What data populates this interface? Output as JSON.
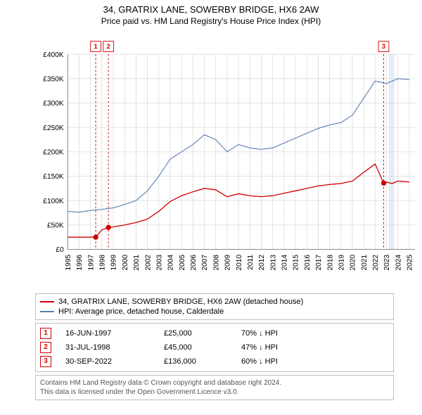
{
  "title": "34, GRATRIX LANE, SOWERBY BRIDGE, HX6 2AW",
  "subtitle": "Price paid vs. HM Land Registry's House Price Index (HPI)",
  "chart": {
    "type": "line",
    "background_color": "#ffffff",
    "grid_color": "#d9d9d9",
    "axis_color": "#808080",
    "yaxis": {
      "min": 0,
      "max": 400000,
      "tick_step": 50000,
      "ticks": [
        "£0",
        "£50K",
        "£100K",
        "£150K",
        "£200K",
        "£250K",
        "£300K",
        "£350K",
        "£400K"
      ],
      "label_fontsize": 11
    },
    "xaxis": {
      "min": 1995,
      "max": 2025.5,
      "years": [
        1995,
        1996,
        1997,
        1998,
        1999,
        2000,
        2001,
        2002,
        2003,
        2004,
        2005,
        2006,
        2007,
        2008,
        2009,
        2010,
        2011,
        2012,
        2013,
        2014,
        2015,
        2016,
        2017,
        2018,
        2019,
        2020,
        2021,
        2022,
        2023,
        2024,
        2025
      ],
      "label_fontsize": 11
    },
    "event_band": {
      "x_start": 2023.2,
      "x_end": 2023.7,
      "fill": "#e6ecf5"
    },
    "series": [
      {
        "name": "property",
        "label": "34, GRATRIX LANE, SOWERBY BRIDGE, HX6 2AW (detached house)",
        "color": "#d00000",
        "line_width": 1.4,
        "data": [
          [
            1995,
            25000
          ],
          [
            1996,
            25000
          ],
          [
            1997,
            25000
          ],
          [
            1997.46,
            25000
          ],
          [
            1998,
            40000
          ],
          [
            1998.58,
            45000
          ],
          [
            1999,
            46000
          ],
          [
            2000,
            50000
          ],
          [
            2001,
            55000
          ],
          [
            2002,
            62000
          ],
          [
            2003,
            78000
          ],
          [
            2004,
            98000
          ],
          [
            2005,
            110000
          ],
          [
            2006,
            118000
          ],
          [
            2007,
            125000
          ],
          [
            2008,
            122000
          ],
          [
            2009,
            108000
          ],
          [
            2010,
            114000
          ],
          [
            2011,
            110000
          ],
          [
            2012,
            108000
          ],
          [
            2013,
            110000
          ],
          [
            2014,
            115000
          ],
          [
            2015,
            120000
          ],
          [
            2016,
            125000
          ],
          [
            2017,
            130000
          ],
          [
            2018,
            133000
          ],
          [
            2019,
            135000
          ],
          [
            2020,
            140000
          ],
          [
            2021,
            158000
          ],
          [
            2022,
            175000
          ],
          [
            2022.75,
            136000
          ],
          [
            2023,
            138000
          ],
          [
            2023.5,
            135000
          ],
          [
            2024,
            140000
          ],
          [
            2025,
            138000
          ]
        ],
        "markers": [
          {
            "x": 1997.46,
            "y": 25000
          },
          {
            "x": 1998.58,
            "y": 45000
          },
          {
            "x": 2022.75,
            "y": 136000
          }
        ]
      },
      {
        "name": "hpi",
        "label": "HPI: Average price, detached house, Calderdale",
        "color": "#5b7fb3",
        "line_width": 1.2,
        "data": [
          [
            1995,
            78000
          ],
          [
            1996,
            76000
          ],
          [
            1997,
            80000
          ],
          [
            1998,
            82000
          ],
          [
            1999,
            85000
          ],
          [
            2000,
            92000
          ],
          [
            2001,
            100000
          ],
          [
            2002,
            120000
          ],
          [
            2003,
            150000
          ],
          [
            2004,
            185000
          ],
          [
            2005,
            200000
          ],
          [
            2006,
            215000
          ],
          [
            2007,
            235000
          ],
          [
            2008,
            225000
          ],
          [
            2009,
            200000
          ],
          [
            2010,
            215000
          ],
          [
            2011,
            208000
          ],
          [
            2012,
            205000
          ],
          [
            2013,
            208000
          ],
          [
            2014,
            218000
          ],
          [
            2015,
            228000
          ],
          [
            2016,
            238000
          ],
          [
            2017,
            248000
          ],
          [
            2018,
            255000
          ],
          [
            2019,
            260000
          ],
          [
            2020,
            275000
          ],
          [
            2021,
            310000
          ],
          [
            2022,
            345000
          ],
          [
            2023,
            340000
          ],
          [
            2024,
            350000
          ],
          [
            2025,
            348000
          ]
        ]
      }
    ],
    "event_markers": [
      {
        "n": "1",
        "x": 1997.46,
        "line_color": "#d00000",
        "dash": "3,3"
      },
      {
        "n": "2",
        "x": 1998.58,
        "line_color": "#d00000",
        "dash": "3,3"
      },
      {
        "n": "3",
        "x": 2022.75,
        "line_color": "#d00000",
        "dash": "3,3"
      }
    ]
  },
  "legend": {
    "border_color": "#bfbfbf",
    "items": [
      {
        "color": "#d00000",
        "label": "34, GRATRIX LANE, SOWERBY BRIDGE, HX6 2AW (detached house)"
      },
      {
        "color": "#5b7fb3",
        "label": "HPI: Average price, detached house, Calderdale"
      }
    ]
  },
  "events": [
    {
      "n": "1",
      "date": "16-JUN-1997",
      "price": "£25,000",
      "delta": "70% ↓ HPI"
    },
    {
      "n": "2",
      "date": "31-JUL-1998",
      "price": "£45,000",
      "delta": "47% ↓ HPI"
    },
    {
      "n": "3",
      "date": "30-SEP-2022",
      "price": "£136,000",
      "delta": "60% ↓ HPI"
    }
  ],
  "footnote": {
    "line1": "Contains HM Land Registry data © Crown copyright and database right 2024.",
    "line2": "This data is licensed under the Open Government Licence v3.0."
  }
}
